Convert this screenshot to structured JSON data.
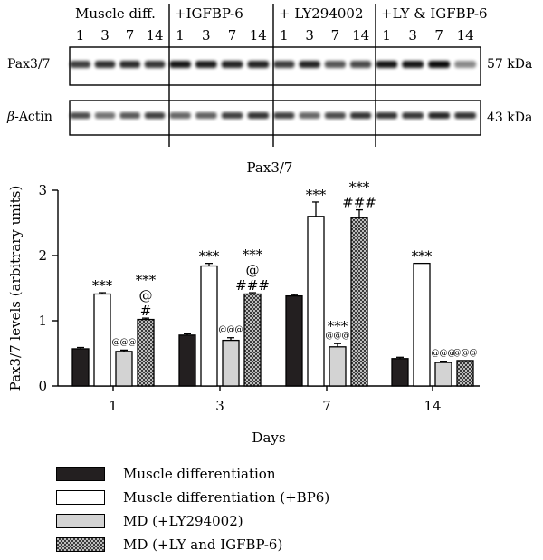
{
  "blot": {
    "group_labels": [
      "Muscle diff.",
      "+IGFBP-6",
      "+ LY294002",
      "+LY & IGFBP-6"
    ],
    "lane_labels": [
      "1",
      "3",
      "7",
      "14"
    ],
    "row_labels": {
      "protein": "Pax3/7",
      "loading_prefix": "β",
      "loading_suffix": "-Actin"
    },
    "size_labels": [
      "57 kDa",
      "43 kDa"
    ]
  },
  "chart_data": {
    "type": "bar",
    "title": "Pax3/7",
    "xlabel": "Days",
    "ylabel": "Pax3/7 levels (arbitrary units)",
    "ylim": [
      0,
      3
    ],
    "yticks": [
      "0",
      "1",
      "2",
      "3"
    ],
    "categories": [
      "1",
      "3",
      "7",
      "14"
    ],
    "series": [
      {
        "name": "Muscle differentiation",
        "values": [
          0.57,
          0.78,
          1.38,
          0.42
        ],
        "errors": [
          0.02,
          0.02,
          0.02,
          0.02
        ],
        "color": "#231f20"
      },
      {
        "name": "Muscle differentiation (+BP6)",
        "values": [
          1.41,
          1.84,
          2.6,
          1.88
        ],
        "errors": [
          0.02,
          0.04,
          0.22,
          0.0
        ],
        "color": "#ffffff"
      },
      {
        "name": "MD (+LY294002)",
        "values": [
          0.53,
          0.7,
          0.6,
          0.36
        ],
        "errors": [
          0.02,
          0.04,
          0.05,
          0.02
        ],
        "color": "#d3d3d3"
      },
      {
        "name": "MD (+LY and IGFBP-6)",
        "values": [
          1.02,
          1.41,
          2.58,
          0.39
        ],
        "errors": [
          0.02,
          0.02,
          0.12,
          0.0
        ],
        "color": "#6e6e6e"
      }
    ],
    "annotations": [
      {
        "category": "1",
        "series": 1,
        "lines": [
          "***"
        ]
      },
      {
        "category": "1",
        "series": 2,
        "lines": [
          "@@@"
        ]
      },
      {
        "category": "1",
        "series": 3,
        "lines": [
          "***",
          "@",
          "#"
        ]
      },
      {
        "category": "3",
        "series": 1,
        "lines": [
          "***"
        ]
      },
      {
        "category": "3",
        "series": 2,
        "lines": [
          "@@@"
        ]
      },
      {
        "category": "3",
        "series": 3,
        "lines": [
          "***",
          "@",
          "###"
        ]
      },
      {
        "category": "7",
        "series": 1,
        "lines": [
          "***"
        ]
      },
      {
        "category": "7",
        "series": 2,
        "lines": [
          "***",
          "@@@"
        ]
      },
      {
        "category": "7",
        "series": 3,
        "lines": [
          "***",
          "###"
        ]
      },
      {
        "category": "14",
        "series": 1,
        "lines": [
          "***"
        ]
      },
      {
        "category": "14",
        "series": 2,
        "lines": [
          "@@@"
        ]
      },
      {
        "category": "14",
        "series": 3,
        "lines": [
          "@@@"
        ]
      }
    ],
    "legend_position": "bottom-left"
  }
}
